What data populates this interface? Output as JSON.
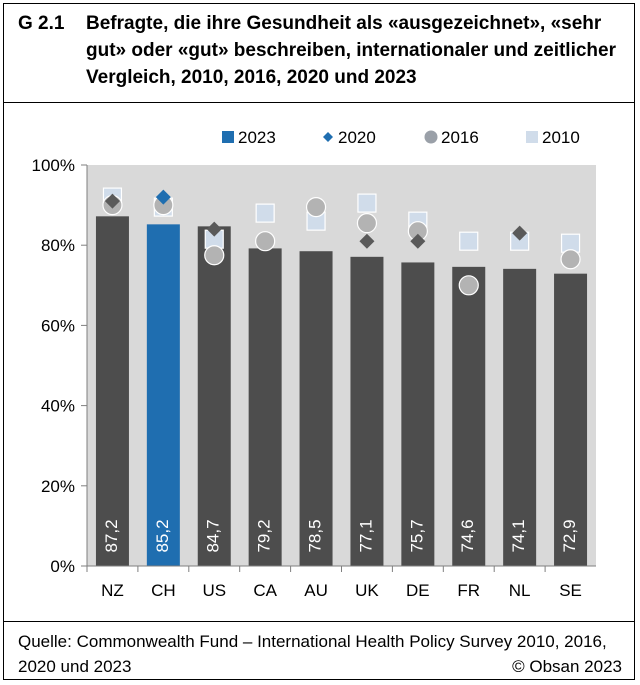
{
  "header": {
    "figure_id": "G 2.1",
    "title": "Befragte, die ihre Gesundheit als «ausgezeichnet», «sehr gut» oder «gut» beschreiben, internationaler und zeitlicher Vergleich, 2010, 2016, 2020 und 2023"
  },
  "footer": {
    "source": "Quelle: Commonwealth Fund – International Health Policy Survey 2010, 2016, 2020 und 2023",
    "copyright": "© Obsan 2023"
  },
  "colors": {
    "bar_default": "#4d4d4d",
    "bar_highlight": "#1f6eb0",
    "plot_bg": "#d9d9d9",
    "marker_2020": "#1f6eb0",
    "marker_2016": "#b3b3b3",
    "marker_2010": "#d0dcea"
  },
  "chart_data": {
    "type": "bar",
    "categories": [
      "NZ",
      "CH",
      "US",
      "CA",
      "AU",
      "UK",
      "DE",
      "FR",
      "NL",
      "SE"
    ],
    "highlight_category": "CH",
    "series": [
      {
        "name": "2023",
        "kind": "bar",
        "symbol": "square",
        "values": [
          87.2,
          85.2,
          84.7,
          79.2,
          78.5,
          77.1,
          75.7,
          74.6,
          74.1,
          72.9
        ]
      },
      {
        "name": "2020",
        "kind": "marker",
        "symbol": "diamond",
        "values": [
          91,
          92,
          84,
          null,
          null,
          81,
          81,
          null,
          83,
          null
        ]
      },
      {
        "name": "2016",
        "kind": "marker",
        "symbol": "circle",
        "values": [
          90,
          90,
          77.5,
          81,
          89.5,
          85.5,
          83.5,
          70,
          null,
          76.5
        ]
      },
      {
        "name": "2010",
        "kind": "marker",
        "symbol": "square",
        "values": [
          92,
          89.5,
          81.5,
          88,
          86,
          90.5,
          86,
          81,
          81,
          80.5
        ]
      }
    ],
    "value_labels": [
      "87,2",
      "85,2",
      "84,7",
      "79,2",
      "78,5",
      "77,1",
      "75,7",
      "74,6",
      "74,1",
      "72,9"
    ],
    "ylim": [
      0,
      100
    ],
    "yticks": [
      0,
      20,
      40,
      60,
      80,
      100
    ],
    "ytick_labels": [
      "0%",
      "20%",
      "40%",
      "60%",
      "80%",
      "100%"
    ],
    "xlabel": "",
    "ylabel": "",
    "legend_position": "top-center",
    "grid": false
  }
}
